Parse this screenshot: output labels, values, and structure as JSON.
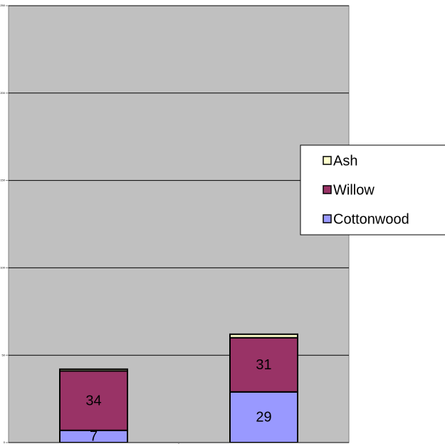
{
  "chart_data": {
    "type": "stacked_bar",
    "categories": [
      null,
      null
    ],
    "series": [
      {
        "name": "Cottonwood",
        "color": "#9999ff",
        "values": [
          7,
          29
        ],
        "show_labels": true
      },
      {
        "name": "Willow",
        "color": "#993366",
        "values": [
          34,
          31
        ],
        "show_labels": true
      },
      {
        "name": "Ash",
        "color": "#ffffcc",
        "values": [
          1,
          2
        ],
        "show_labels": false
      }
    ],
    "ylim": [
      0,
      250
    ],
    "yticks": [
      0,
      50,
      100,
      150,
      200,
      250
    ],
    "grid": true,
    "background": "#c0c0c0",
    "legend": "right"
  }
}
